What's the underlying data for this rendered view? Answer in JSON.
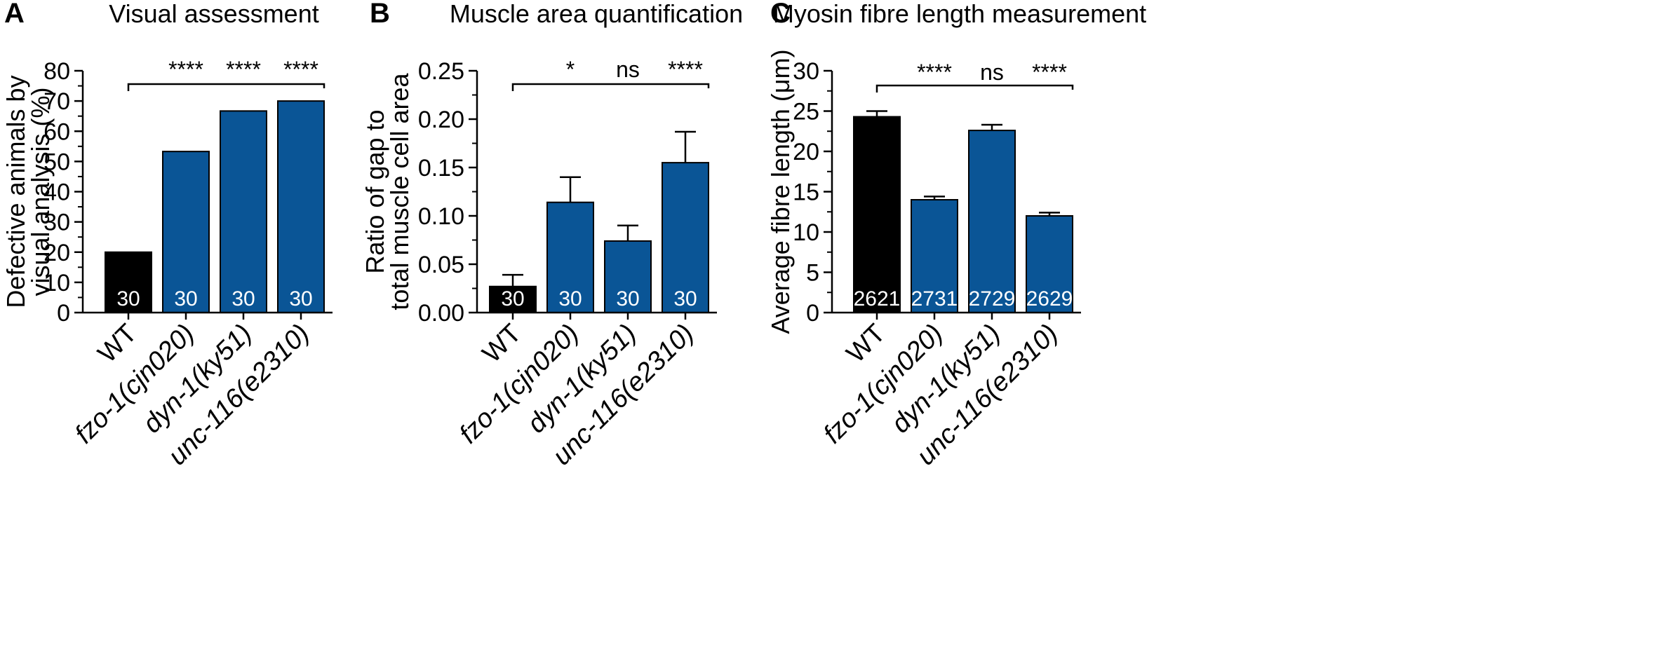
{
  "colors": {
    "wt": "#000000",
    "mutant": "#0a5596",
    "axis": "#000000",
    "n_text": "#ffffff"
  },
  "chart_data": [
    {
      "panel": "A",
      "type": "bar",
      "title": "Visual assessment",
      "ylabel": [
        "Defective animals by",
        "visual analysis (%)"
      ],
      "xlabel": "",
      "ylim": [
        0,
        80
      ],
      "yticks": [
        "0",
        "10",
        "20",
        "30",
        "40",
        "50",
        "60",
        "70",
        "80"
      ],
      "ytick_values": [
        0,
        10,
        20,
        30,
        40,
        50,
        60,
        70,
        80
      ],
      "categories": [
        "WT",
        "fzo-1(cjn020)",
        "dyn-1(ky51)",
        "unc-116(e2310)"
      ],
      "italic": [
        false,
        true,
        true,
        true
      ],
      "values": [
        20,
        53.3,
        66.7,
        70
      ],
      "errors": [
        null,
        null,
        null,
        null
      ],
      "n": [
        "30",
        "30",
        "30",
        "30"
      ],
      "significance": [
        "",
        "****",
        "****",
        "****"
      ]
    },
    {
      "panel": "B",
      "type": "bar",
      "title": "Muscle area quantification",
      "ylabel": [
        "Ratio of gap to",
        "total muscle cell area"
      ],
      "xlabel": "",
      "ylim": [
        0,
        0.25
      ],
      "yticks": [
        "0.00",
        "0.05",
        "0.10",
        "0.15",
        "0.20",
        "0.25"
      ],
      "ytick_values": [
        0,
        0.05,
        0.1,
        0.15,
        0.2,
        0.25
      ],
      "categories": [
        "WT",
        "fzo-1(cjn020)",
        "dyn-1(ky51)",
        "unc-116(e2310)"
      ],
      "italic": [
        false,
        true,
        true,
        true
      ],
      "values": [
        0.027,
        0.114,
        0.074,
        0.155
      ],
      "errors": [
        0.012,
        0.026,
        0.016,
        0.032
      ],
      "n": [
        "30",
        "30",
        "30",
        "30"
      ],
      "significance": [
        "",
        "*",
        "ns",
        "****"
      ]
    },
    {
      "panel": "C",
      "type": "bar",
      "title": "Myosin fibre length measurement",
      "ylabel": [
        "Average fibre length (μm)"
      ],
      "xlabel": "",
      "ylim": [
        0,
        30
      ],
      "yticks": [
        "0",
        "5",
        "10",
        "15",
        "20",
        "25",
        "30"
      ],
      "ytick_values": [
        0,
        5,
        10,
        15,
        20,
        25,
        30
      ],
      "categories": [
        "WT",
        "fzo-1(cjn020)",
        "dyn-1(ky51)",
        "unc-116(e2310)"
      ],
      "italic": [
        false,
        true,
        true,
        true
      ],
      "values": [
        24.3,
        14.0,
        22.6,
        12.0
      ],
      "errors": [
        0.7,
        0.4,
        0.7,
        0.4
      ],
      "n": [
        "2621",
        "2731",
        "2729",
        "2629"
      ],
      "significance": [
        "",
        "****",
        "ns",
        "****"
      ]
    }
  ]
}
